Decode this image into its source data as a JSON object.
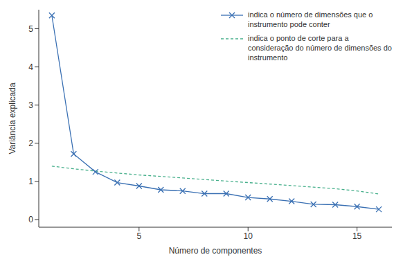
{
  "chart_data": {
    "type": "line",
    "x_label": "Número de componentes",
    "y_label": "Variância explicada",
    "x": [
      1,
      2,
      3,
      4,
      5,
      6,
      7,
      8,
      9,
      10,
      11,
      12,
      13,
      14,
      15,
      16
    ],
    "series": [
      {
        "name": "indica o número de dimensões que o instrumento pode conter",
        "color": "#3a70b3",
        "marker": "x",
        "line_style": "solid",
        "values": [
          5.35,
          1.72,
          1.25,
          0.97,
          0.88,
          0.78,
          0.75,
          0.68,
          0.68,
          0.58,
          0.54,
          0.48,
          0.4,
          0.39,
          0.34,
          0.27
        ]
      },
      {
        "name": "indica o ponto de corte para a consideração do número de dimensões do instrumento",
        "color": "#48b08c",
        "marker": "none",
        "line_style": "dashed",
        "values": [
          1.4,
          1.33,
          1.27,
          1.22,
          1.17,
          1.13,
          1.09,
          1.05,
          1.01,
          0.97,
          0.93,
          0.89,
          0.85,
          0.81,
          0.75,
          0.67
        ]
      }
    ],
    "xlim": [
      0.4,
      16.6
    ],
    "xticks": [
      5,
      10,
      15
    ],
    "ylim": [
      -0.2,
      5.5
    ],
    "yticks": [
      0,
      1,
      2,
      3,
      4,
      5
    ],
    "grid": false,
    "legend": "upper right"
  }
}
